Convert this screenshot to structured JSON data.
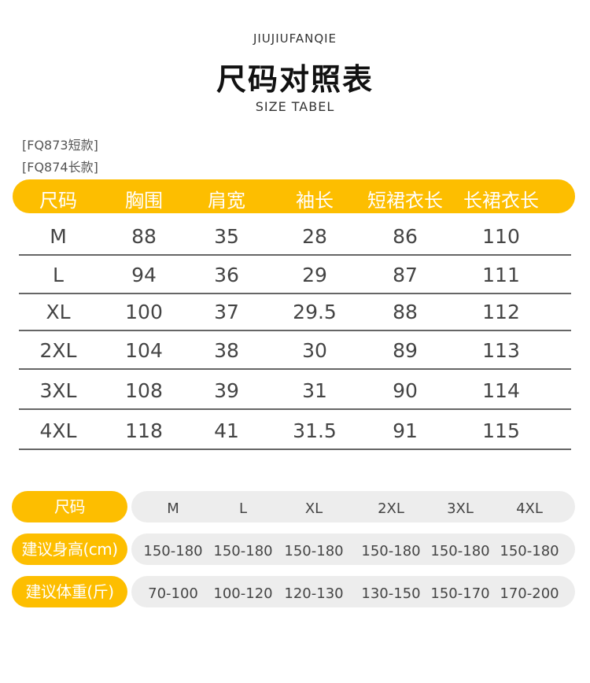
{
  "header": {
    "brand": "JIUJIUFANQIE",
    "title": "尺码对照表",
    "subtitle": "SIZE TABEL"
  },
  "notes": [
    "[FQ873短款]",
    "[FQ874长款]"
  ],
  "colors": {
    "accent": "#FDBE00",
    "pill_bg": "#EDEDED",
    "text": "#444444"
  },
  "size_table": {
    "columns": [
      "尺码",
      "胸围",
      "肩宽",
      "袖长",
      "短裙衣长",
      "长裙衣长"
    ],
    "rows": [
      [
        "M",
        "88",
        "35",
        "28",
        "86",
        "110"
      ],
      [
        "L",
        "94",
        "36",
        "29",
        "87",
        "111"
      ],
      [
        "XL",
        "100",
        "37",
        "29.5",
        "88",
        "112"
      ],
      [
        "2XL",
        "104",
        "38",
        "30",
        "89",
        "113"
      ],
      [
        "3XL",
        "108",
        "39",
        "31",
        "90",
        "114"
      ],
      [
        "4XL",
        "118",
        "41",
        "31.5",
        "91",
        "115"
      ]
    ]
  },
  "recommend_table": {
    "rows": [
      {
        "label": "尺码",
        "values": [
          "M",
          "L",
          "XL",
          "2XL",
          "3XL",
          "4XL"
        ]
      },
      {
        "label": "建议身高(cm)",
        "values": [
          "150-180",
          "150-180",
          "150-180",
          "150-180",
          "150-180",
          "150-180"
        ]
      },
      {
        "label": "建议体重(斤)",
        "values": [
          "70-100",
          "100-120",
          "120-130",
          "130-150",
          "150-170",
          "170-200"
        ]
      }
    ]
  }
}
